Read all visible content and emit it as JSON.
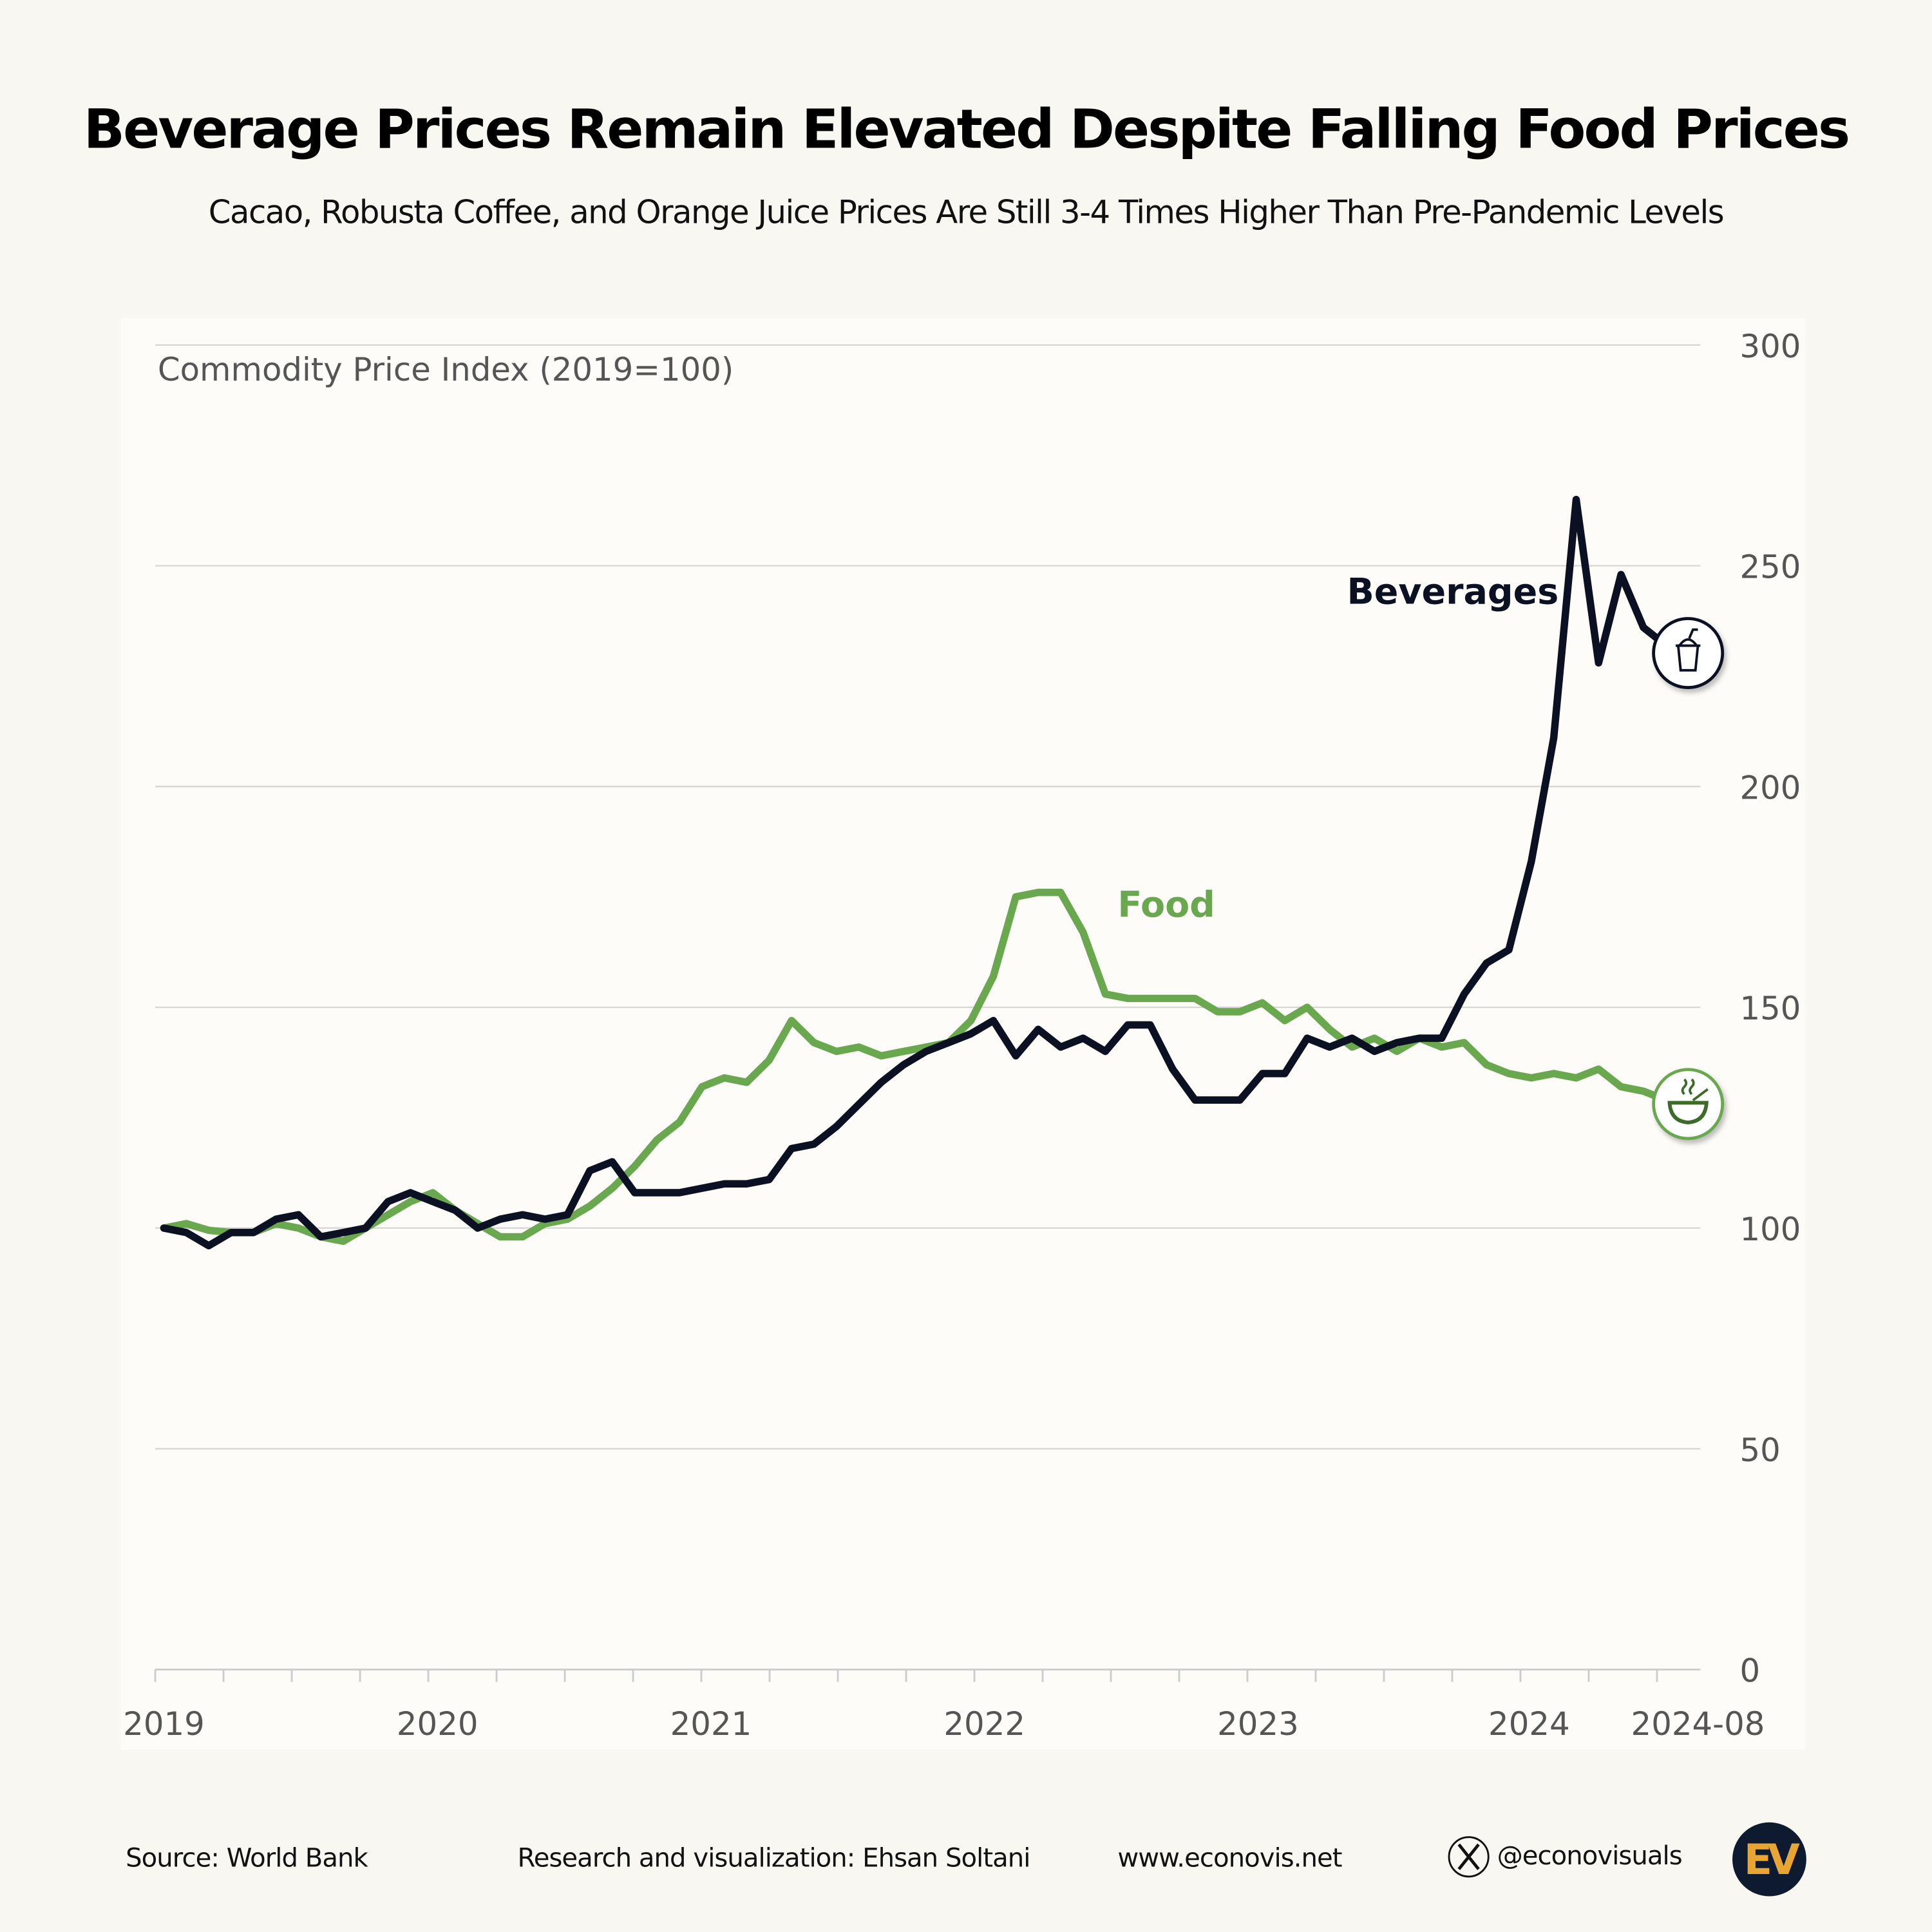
{
  "header": {
    "title": "Beverage Prices Remain Elevated Despite Falling Food Prices",
    "subtitle": "Cacao, Robusta Coffee, and Orange Juice Prices Are Still 3-4 Times Higher Than Pre-Pandemic Levels"
  },
  "chart_data": {
    "type": "line",
    "title": "Beverage Prices Remain Elevated Despite Falling Food Prices",
    "ylabel": "Commodity Price Index (2019=100)",
    "ylim": [
      0,
      300
    ],
    "yticks": [
      "0",
      "50",
      "100",
      "150",
      "200",
      "250",
      "300"
    ],
    "xrange": [
      "2019-01",
      "2024-08"
    ],
    "xticks": [
      "2019",
      "2020",
      "2021",
      "2022",
      "2023",
      "2024",
      "2024-08"
    ],
    "grid": true,
    "frequency": "monthly",
    "series": [
      {
        "name": "Beverages",
        "color": "#0b1023",
        "icon": "drink-cup-icon",
        "values": [
          100,
          99,
          96,
          99,
          99,
          102,
          103,
          98,
          99,
          100,
          106,
          108,
          106,
          104,
          100,
          102,
          103,
          102,
          103,
          113,
          115,
          108,
          108,
          108,
          109,
          110,
          110,
          111,
          118,
          119,
          123,
          128,
          133,
          137,
          140,
          142,
          144,
          147,
          139,
          145,
          141,
          143,
          140,
          146,
          146,
          136,
          129,
          129,
          129,
          135,
          135,
          143,
          141,
          143,
          140,
          142,
          143,
          143,
          153,
          160,
          163,
          183,
          211,
          265,
          228,
          248,
          236,
          232
        ]
      },
      {
        "name": "Food",
        "color": "#6aa84f",
        "icon": "soup-bowl-icon",
        "values": [
          100,
          101,
          99.5,
          99,
          99,
          101,
          100,
          98,
          97,
          100,
          103,
          106,
          108,
          104,
          101,
          98,
          98,
          101,
          102,
          105,
          109,
          114,
          120,
          124,
          132,
          134,
          133,
          138,
          147,
          142,
          140,
          141,
          139,
          140,
          141,
          142,
          147,
          157,
          175,
          176,
          176,
          167,
          153,
          152,
          152,
          152,
          152,
          149,
          149,
          151,
          147,
          150,
          145,
          141,
          143,
          140,
          143,
          141,
          142,
          137,
          135,
          134,
          135,
          134,
          136,
          132,
          131,
          129
        ]
      }
    ]
  },
  "footer": {
    "source": "Source: World Bank",
    "credit": "Research and visualization: Ehsan Soltani",
    "website": "www.econovis.net",
    "social": "@econovisuals",
    "logo_text": "EV",
    "logo_colors": {
      "bg": "#0d1a30",
      "fg": "#e8a533"
    }
  }
}
